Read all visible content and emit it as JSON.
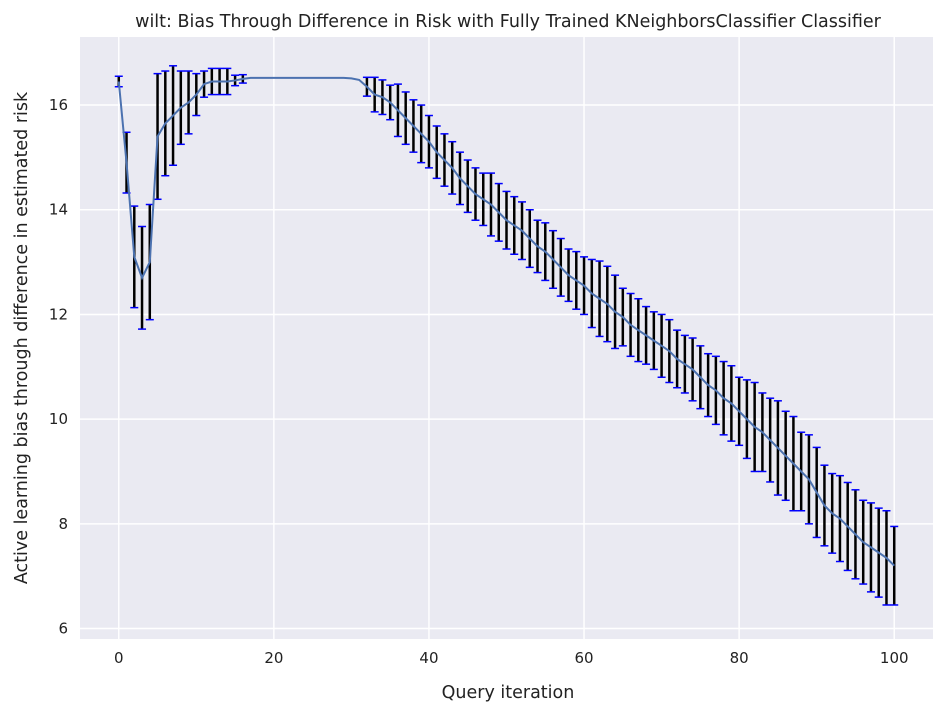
{
  "chart_data": {
    "type": "line",
    "title": "wilt: Bias Through Difference in Risk with Fully Trained KNeighborsClassifier Classifier",
    "xlabel": "Query iteration",
    "ylabel": "Active learning bias through difference in estimated risk",
    "xlim": [
      -5,
      105
    ],
    "ylim": [
      5.8,
      17.3
    ],
    "x_ticks": [
      0,
      20,
      40,
      60,
      80,
      100
    ],
    "y_ticks": [
      6,
      8,
      10,
      12,
      14,
      16
    ],
    "x_tick_labels": [
      "0",
      "20",
      "40",
      "60",
      "80",
      "100"
    ],
    "y_tick_labels": [
      "6",
      "8",
      "10",
      "12",
      "14",
      "16"
    ],
    "grid": true,
    "background": "#eaeaf2",
    "grid_color": "#ffffff",
    "line_color": "#4c72b0",
    "errorbar_color": "#000000",
    "cap_color": "#0000ff",
    "series": [
      {
        "x": [
          0,
          1,
          2,
          3,
          4,
          5,
          6,
          7,
          8,
          9,
          10,
          11,
          12,
          13,
          14,
          15,
          16,
          17,
          18,
          19,
          20,
          21,
          22,
          23,
          24,
          25,
          26,
          27,
          28,
          29,
          30,
          31,
          32,
          33,
          34,
          35,
          36,
          37,
          38,
          39,
          40,
          41,
          42,
          43,
          44,
          45,
          46,
          47,
          48,
          49,
          50,
          51,
          52,
          53,
          54,
          55,
          56,
          57,
          58,
          59,
          60,
          61,
          62,
          63,
          64,
          65,
          66,
          67,
          68,
          69,
          70,
          71,
          72,
          73,
          74,
          75,
          76,
          77,
          78,
          79,
          80,
          81,
          82,
          83,
          84,
          85,
          86,
          87,
          88,
          89,
          90,
          91,
          92,
          93,
          94,
          95,
          96,
          97,
          98,
          99,
          100
        ],
        "y": [
          16.45,
          14.9,
          13.1,
          12.7,
          13.0,
          15.4,
          15.65,
          15.8,
          15.95,
          16.05,
          16.2,
          16.4,
          16.45,
          16.45,
          16.45,
          16.47,
          16.5,
          16.52,
          16.52,
          16.52,
          16.52,
          16.52,
          16.52,
          16.52,
          16.52,
          16.52,
          16.52,
          16.52,
          16.52,
          16.52,
          16.51,
          16.48,
          16.35,
          16.2,
          16.15,
          16.05,
          15.9,
          15.75,
          15.6,
          15.45,
          15.3,
          15.1,
          14.95,
          14.8,
          14.6,
          14.45,
          14.3,
          14.2,
          14.1,
          13.95,
          13.8,
          13.7,
          13.6,
          13.45,
          13.3,
          13.2,
          13.05,
          12.9,
          12.75,
          12.65,
          12.55,
          12.4,
          12.3,
          12.2,
          12.05,
          11.95,
          11.8,
          11.7,
          11.6,
          11.5,
          11.4,
          11.3,
          11.15,
          11.05,
          10.95,
          10.8,
          10.65,
          10.55,
          10.4,
          10.3,
          10.15,
          10.0,
          9.85,
          9.75,
          9.6,
          9.45,
          9.3,
          9.15,
          9.0,
          8.85,
          8.6,
          8.35,
          8.2,
          8.1,
          7.95,
          7.8,
          7.65,
          7.55,
          7.45,
          7.35,
          7.2
        ],
        "err": [
          0.1,
          0.58,
          0.97,
          0.98,
          1.1,
          1.2,
          1.0,
          0.95,
          0.7,
          0.6,
          0.4,
          0.25,
          0.25,
          0.25,
          0.25,
          0.1,
          0.08,
          0.0,
          0.0,
          0.0,
          0.0,
          0.0,
          0.0,
          0.0,
          0.0,
          0.0,
          0.0,
          0.0,
          0.0,
          0.0,
          0.0,
          0.0,
          0.18,
          0.33,
          0.33,
          0.33,
          0.5,
          0.5,
          0.5,
          0.55,
          0.5,
          0.5,
          0.5,
          0.5,
          0.5,
          0.5,
          0.5,
          0.5,
          0.6,
          0.55,
          0.55,
          0.55,
          0.55,
          0.55,
          0.5,
          0.55,
          0.55,
          0.55,
          0.5,
          0.55,
          0.55,
          0.65,
          0.72,
          0.72,
          0.7,
          0.55,
          0.6,
          0.6,
          0.55,
          0.55,
          0.6,
          0.6,
          0.55,
          0.55,
          0.6,
          0.6,
          0.6,
          0.65,
          0.7,
          0.72,
          0.65,
          0.75,
          0.85,
          0.75,
          0.8,
          0.9,
          0.85,
          0.9,
          0.75,
          0.85,
          0.86,
          0.77,
          0.76,
          0.82,
          0.84,
          0.85,
          0.8,
          0.85,
          0.85,
          0.9,
          0.75
        ]
      }
    ]
  }
}
